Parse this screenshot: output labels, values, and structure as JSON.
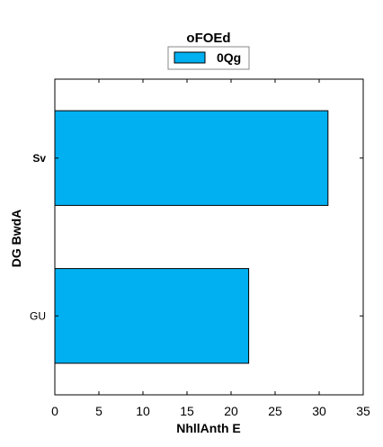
{
  "chart_data": {
    "type": "bar",
    "orientation": "horizontal",
    "title": "oFOEd",
    "xlabel": "NhllAnth E",
    "ylabel": "DG BwdA",
    "categories": [
      "Sv",
      "GU"
    ],
    "series": [
      {
        "name": "0Qg",
        "values": [
          31,
          22
        ],
        "color": "#00b0f0"
      }
    ],
    "xlim": [
      0,
      35
    ],
    "xticks": [
      0,
      5,
      10,
      15,
      20,
      25,
      30,
      35
    ],
    "grid": false,
    "legend_position": "top-center"
  }
}
